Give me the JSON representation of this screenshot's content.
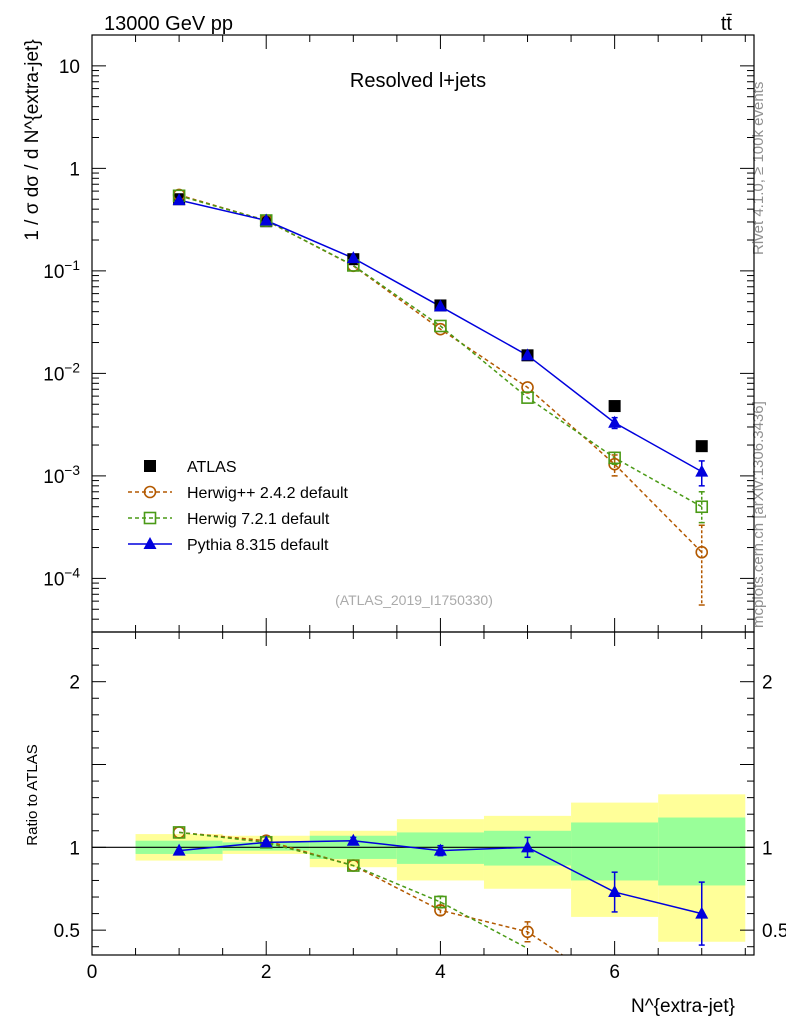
{
  "header": {
    "energy_label": "13000 GeV pp",
    "process_label": "tt̄"
  },
  "side_labels": {
    "rivet": "Rivet 4.1.0, ≥ 100k events",
    "mcplots": "mcplots.cern.ch [arXiv:1306.3436]"
  },
  "chart_data": [
    {
      "type": "line",
      "panel": "main",
      "title": "Resolved l+jets",
      "analysis_label": "(ATLAS_2019_I1750330)",
      "ylabel": "1 / σ dσ / d N^{extra-jet}",
      "yscale": "log",
      "ylim": [
        3e-05,
        20
      ],
      "xlim": [
        0,
        7.6
      ],
      "y_ticks": [
        {
          "value": 0.0001,
          "label": "10^-4"
        },
        {
          "value": 0.001,
          "label": "10^-3"
        },
        {
          "value": 0.01,
          "label": "10^-2"
        },
        {
          "value": 0.1,
          "label": "10^-1"
        },
        {
          "value": 1,
          "label": "1"
        },
        {
          "value": 10,
          "label": "10"
        }
      ],
      "legend_position": "bottom-left",
      "series": [
        {
          "name": "ATLAS",
          "style": "data",
          "color": "#000000",
          "marker": "square",
          "x": [
            1,
            2,
            3,
            4,
            5,
            6,
            7
          ],
          "y": [
            0.5,
            0.305,
            0.13,
            0.046,
            0.015,
            0.0048,
            0.00195
          ]
        },
        {
          "name": "Herwig++ 2.4.2 default",
          "style": "dashed",
          "color": "#b35900",
          "marker": "open-circle",
          "x": [
            1,
            2,
            3,
            4,
            5,
            6,
            7
          ],
          "y": [
            0.55,
            0.31,
            0.112,
            0.027,
            0.0073,
            0.0013,
            0.00018
          ],
          "yerr_low": [
            0,
            0,
            0,
            0,
            0,
            0.0003,
            0.000125
          ],
          "yerr_high": [
            0,
            0,
            0,
            0,
            0,
            0.0003,
            0.00015
          ]
        },
        {
          "name": "Herwig 7.2.1 default",
          "style": "dashed",
          "color": "#4a9a16",
          "marker": "open-square",
          "x": [
            1,
            2,
            3,
            4,
            5,
            6,
            7
          ],
          "y": [
            0.54,
            0.31,
            0.113,
            0.029,
            0.0058,
            0.0015,
            0.0005
          ],
          "yerr_low": [
            0,
            0,
            0,
            0,
            0,
            0.0002,
            0.00015
          ],
          "yerr_high": [
            0,
            0,
            0,
            0,
            0,
            0.0002,
            0.0002
          ]
        },
        {
          "name": "Pythia 8.315 default",
          "style": "solid",
          "color": "#0000dd",
          "marker": "filled-triangle",
          "x": [
            1,
            2,
            3,
            4,
            5,
            6,
            7
          ],
          "y": [
            0.49,
            0.31,
            0.133,
            0.045,
            0.015,
            0.0033,
            0.0011
          ],
          "yerr_low": [
            0,
            0,
            0,
            0,
            0,
            0.0004,
            0.0003
          ],
          "yerr_high": [
            0,
            0,
            0,
            0,
            0,
            0.0004,
            0.0003
          ]
        }
      ]
    },
    {
      "type": "line",
      "panel": "ratio",
      "ylabel": "Ratio to ATLAS",
      "xlabel": "N^{extra-jet}",
      "ylim": [
        0.35,
        2.3
      ],
      "xlim": [
        0,
        7.6
      ],
      "x_ticks": [
        0,
        2,
        4,
        6
      ],
      "y_ticks": [
        0.5,
        1,
        2
      ],
      "reference_line": 1,
      "bands": {
        "bin_edges": [
          [
            0.5,
            1.5
          ],
          [
            1.5,
            2.5
          ],
          [
            2.5,
            3.5
          ],
          [
            3.5,
            4.5
          ],
          [
            4.5,
            5.5
          ],
          [
            5.5,
            6.5
          ],
          [
            6.5,
            7.5
          ]
        ],
        "stat_low": [
          0.96,
          0.98,
          0.93,
          0.9,
          0.89,
          0.8,
          0.77
        ],
        "stat_high": [
          1.04,
          1.03,
          1.07,
          1.09,
          1.1,
          1.15,
          1.18
        ],
        "total_low": [
          0.92,
          0.96,
          0.88,
          0.8,
          0.75,
          0.58,
          0.43
        ],
        "total_high": [
          1.08,
          1.07,
          1.1,
          1.17,
          1.19,
          1.27,
          1.32
        ],
        "stat_color": "#99ff99",
        "total_color": "#ffff99"
      },
      "series": [
        {
          "name": "Herwig++ 2.4.2 default",
          "style": "dashed",
          "color": "#b35900",
          "marker": "open-circle",
          "x": [
            1,
            2,
            3,
            4,
            5,
            5.4
          ],
          "y": [
            1.09,
            1.04,
            0.89,
            0.62,
            0.49,
            0.35
          ],
          "yerr": [
            0,
            0,
            0,
            0.03,
            0.06,
            0
          ]
        },
        {
          "name": "Herwig 7.2.1 default",
          "style": "dashed",
          "color": "#4a9a16",
          "marker": "open-square",
          "x": [
            1,
            2,
            3,
            4,
            5
          ],
          "y": [
            1.09,
            1.03,
            0.89,
            0.67,
            0.39
          ],
          "yerr": [
            0,
            0,
            0,
            0.035,
            0
          ],
          "marker_hidden_last": true
        },
        {
          "name": "Pythia 8.315 default",
          "style": "solid",
          "color": "#0000dd",
          "marker": "filled-triangle",
          "x": [
            1,
            2,
            3,
            4,
            5,
            6,
            7
          ],
          "y": [
            0.98,
            1.03,
            1.04,
            0.98,
            1.0,
            0.73,
            0.6
          ],
          "yerr": [
            0,
            0,
            0.02,
            0.03,
            0.06,
            0.12,
            0.19
          ]
        }
      ]
    }
  ]
}
